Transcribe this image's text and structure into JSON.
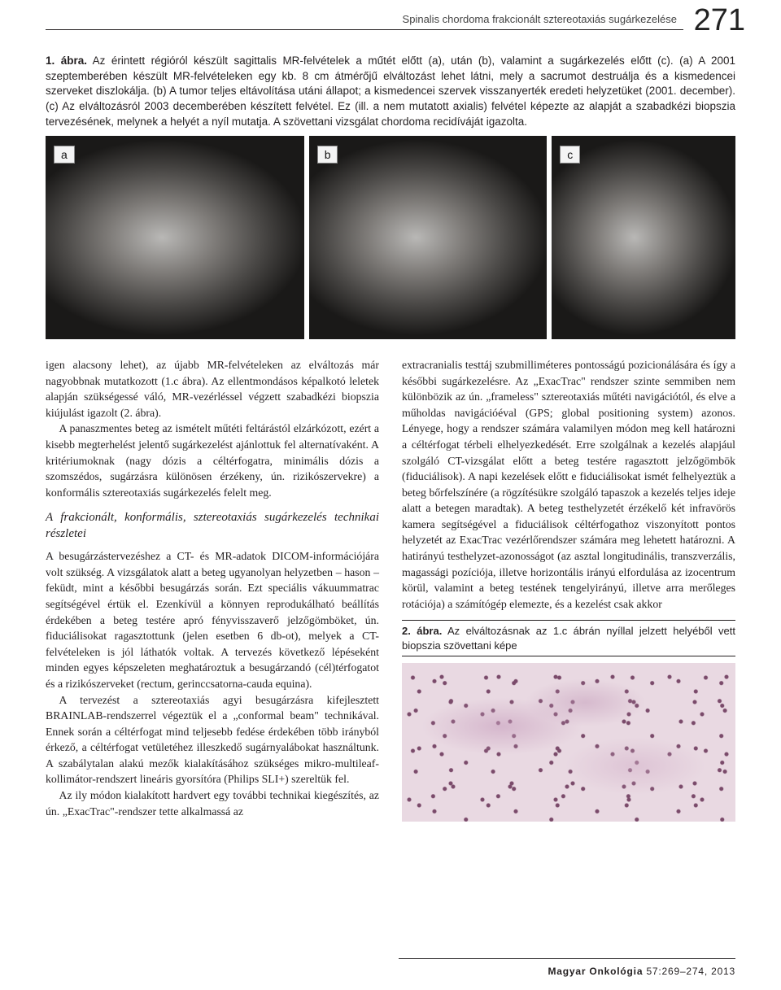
{
  "header": {
    "running_head": "Spinalis chordoma frakcionált sztereotaxiás sugárkezelése",
    "page_number": "271"
  },
  "figure1": {
    "caption_lead": "1. ábra.",
    "caption_text": "Az érintett régióról készült sagittalis MR-felvételek a műtét előtt (a), után (b), valamint a sugárkezelés előtt (c). (a) A 2001 szeptemberében készült MR-felvételeken egy kb. 8 cm átmérőjű elváltozást lehet látni, mely a sacrumot destruálja és a kismedencei szerveket diszlokálja. (b) A tumor teljes eltávolítása utáni állapot; a kismedencei szervek visszanyerték eredeti helyzetüket (2001. december). (c) Az elváltozásról 2003 decemberében készített felvétel. Ez (ill. a nem mutatott axialis) felvétel képezte az alapját a szabadkézi biopszia tervezésének, melynek a helyét a nyíl mutatja. A szövettani vizsgálat chordoma recidíváját igazolta.",
    "panels": {
      "a": "a",
      "b": "b",
      "c": "c"
    }
  },
  "body": {
    "left": {
      "p1": "igen alacsony lehet), az újabb MR-felvételeken az elváltozás már nagyobbnak mutatkozott (1.c ábra). Az ellentmondásos képalkotó leletek alapján szükségessé váló, MR-vezérléssel végzett szabadkézi biopszia kiújulást igazolt (2. ábra).",
      "p2": "A panaszmentes beteg az ismételt műtéti feltárástól elzárkózott, ezért a kisebb megterhelést jelentő sugárkezelést ajánlottuk fel alternatívaként. A kritériumoknak (nagy dózis a céltérfogatra, minimális dózis a szomszédos, sugárzásra különösen érzékeny, ún. rizikószervekre) a konformális sztereotaxiás sugárkezelés felelt meg.",
      "subhead": "A frakcionált, konformális, sztereotaxiás sugárkezelés technikai részletei",
      "p3": "A besugárzástervezéshez a CT- és MR-adatok DICOM-információjára volt szükség. A vizsgálatok alatt a beteg ugyanolyan helyzetben – hason – feküdt, mint a későbbi besugárzás során. Ezt speciális vákuummatrac segítségével értük el. Ezenkívül a könnyen reprodukálható beállítás érdekében a beteg testére apró fényvisszaverő jelzőgömbö­ket, ún. fiduciálisokat ragasztottunk (jelen esetben 6 db-ot), melyek a CT-felvételeken is jól láthatók voltak. A tervezés következő lépéseként minden egyes képszeleten meghatároztuk a besugárzandó (cél)térfogatot és a rizikószerveket (rectum, gerinccsatorna-cauda equina).",
      "p4": "A tervezést a sztereotaxiás agyi besugárzásra kifejlesztett BRAINLAB-rendszerrel végeztük el a „conformal beam\" technikával. Ennek során a céltérfogat mind teljesebb fedése érdekében több irányból érkező, a céltérfogat vetületéhez il­leszkedő sugárnyalábokat használtunk. A szabálytalan alakú mezők kialakításához szükséges mikro-multileaf-kollimátor-rendszert lineáris gyorsítóra (Philips SLI+) szereltük fel.",
      "p5": "Az ily módon kialakított hardvert egy további technikai kiegészítés, az ún. „ExacTrac\"-rendszer tette alkalmassá az"
    },
    "right": {
      "p1": "extracranialis testtáj szubmilliméteres pontosságú pozicionálására és így a későbbi sugárkezelésre. Az „ExacTrac\" rendszer szinte semmiben nem különbözik az ún. „frameless\" sztereotaxiás műtéti navigációtól, és elve a műholdas navigációéval (GPS; global positioning system) azonos. Lényege, hogy a rendszer számára valamilyen módon meg kell határozni a céltérfogat térbeli elhelyezkedését. Erre szolgálnak a kezelés alapjául szolgáló CT-vizsgálat előtt a beteg testére ragasztott jelzőgömbök (fiduciálisok). A napi kezelések előtt e fiduciálisokat ismét felhelyeztük a beteg bőrfelszínére (a rögzítésükre szolgáló tapaszok a kezelés teljes ideje alatt a betegen maradtak). A beteg testhelyzetét érzékelő két infravörös kamera segítségével a fiduciálisok céltérfogathoz viszonyított pontos helyzetét az ExacTrac vezérlőrendszer számára meg lehetett határozni. A hatirányú testhelyzet-azonosságot (az asztal longitudinális, transzverzális, magassági pozíciója, illetve horizontális irányú elfordulása az izocentrum körül, valamint a beteg testének tengelyirányú, illetve arra merőleges rotációja) a számítógép elemezte, és a kezelést csak akkor"
    }
  },
  "figure2": {
    "caption_lead": "2. ábra.",
    "caption_text": "Az elváltozásnak az 1.c ábrán nyíllal jelzett helyéből vett biopszia szövettani képe"
  },
  "footer": {
    "journal": "Magyar Onkológia",
    "citation": "57:269–274, 2013"
  }
}
